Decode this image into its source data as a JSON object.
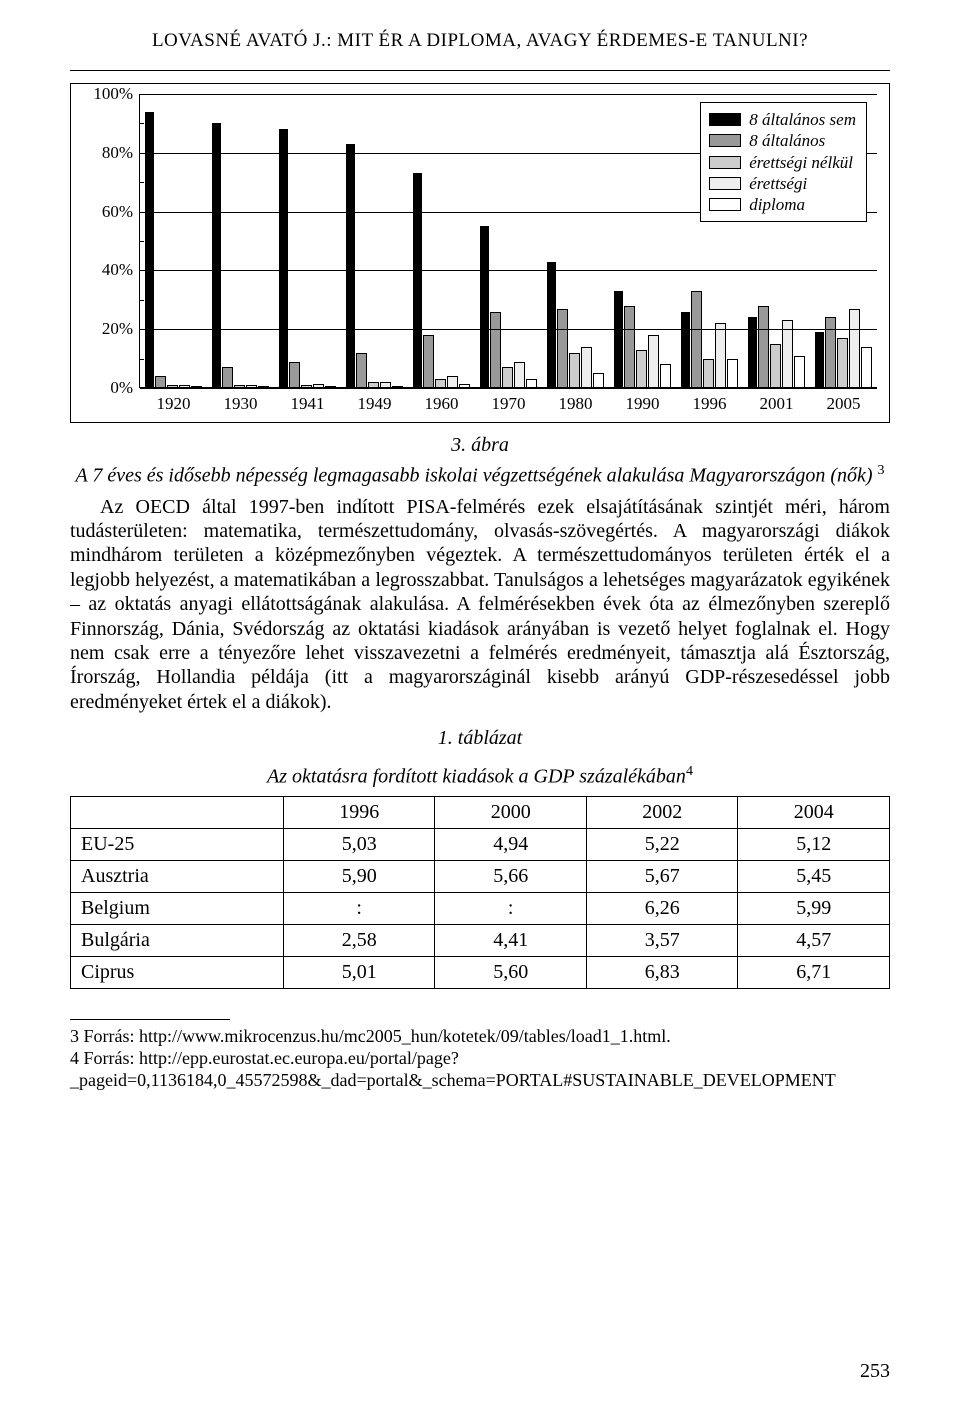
{
  "header_title": "LOVASNÉ AVATÓ J.: MIT ÉR A DIPLOMA, AVAGY ÉRDEMES-E TANULNI?",
  "chart": {
    "type": "bar",
    "y_ticks": [
      0,
      20,
      40,
      60,
      80,
      100
    ],
    "y_ticklabels": [
      "0%",
      "20%",
      "40%",
      "60%",
      "80%",
      "100%"
    ],
    "y_max": 100,
    "categories": [
      "1920",
      "1930",
      "1941",
      "1949",
      "1960",
      "1970",
      "1980",
      "1990",
      "1996",
      "2001",
      "2005"
    ],
    "series": [
      {
        "label": "8 általános sem",
        "values": [
          94,
          90,
          88,
          83,
          73,
          55,
          43,
          33,
          26,
          24,
          19
        ]
      },
      {
        "label": "8 általános",
        "values": [
          4,
          7,
          9,
          12,
          18,
          26,
          27,
          28,
          33,
          28,
          24
        ]
      },
      {
        "label": "érettségi nélkül",
        "values": [
          1,
          1,
          1,
          2,
          3,
          7,
          12,
          13,
          10,
          15,
          17
        ]
      },
      {
        "label": "érettségi",
        "values": [
          1,
          1,
          1.5,
          2,
          4,
          9,
          14,
          18,
          22,
          23,
          27
        ]
      },
      {
        "label": "diploma",
        "values": [
          0.5,
          0.5,
          0.6,
          0.8,
          1.5,
          3,
          5,
          8,
          10,
          11,
          14
        ]
      }
    ]
  },
  "caption_no": "3. ábra",
  "caption_text": "A 7 éves és idősebb népesség legmagasabb iskolai végzettségének alakulása Magyarországon (nők)",
  "caption_sup": "3",
  "body1_html": "Az OECD által 1997-ben indított PISA-felmérés ezek elsajátításának szintjét méri, három tudásterületen: matematika, természettudomány, olvasás-szövegértés. A magyarországi diákok mindhárom területen a középmezőnyben végeztek. A természettudományos területen érték el a legjobb helyezést, a matematikában a legrosszabbat. Tanulságos a lehetséges magyarázatok egyikének – az oktatás anyagi ellátottságának alakulása. A felmérésekben évek óta az élmezőnyben szereplő Finnország, Dánia, Svédország az oktatási kiadások arányában is vezető helyet foglalnak el. Hogy nem csak erre a tényezőre lehet visszavezetni a felmérés eredményeit, támasztja alá Észtország, Írország, Hollandia példája (itt a magyarországinál kisebb arányú GDP-részesedéssel jobb eredményeket értek el a diákok).",
  "table_caption_no": "1. táblázat",
  "table_caption_text": "Az oktatásra fordított kiadások a GDP százalékában",
  "table_caption_sup": "4",
  "table": {
    "columns": [
      "1996",
      "2000",
      "2002",
      "2004"
    ],
    "rows": [
      {
        "label": "EU-25",
        "cells": [
          "5,03",
          "4,94",
          "5,22",
          "5,12"
        ]
      },
      {
        "label": "Ausztria",
        "cells": [
          "5,90",
          "5,66",
          "5,67",
          "5,45"
        ]
      },
      {
        "label": "Belgium",
        "cells": [
          ":",
          ":",
          "6,26",
          "5,99"
        ]
      },
      {
        "label": "Bulgária",
        "cells": [
          "2,58",
          "4,41",
          "3,57",
          "4,57"
        ]
      },
      {
        "label": "Ciprus",
        "cells": [
          "5,01",
          "5,60",
          "6,83",
          "6,71"
        ]
      }
    ]
  },
  "footnotes": [
    "3 Forrás: http://www.mikrocenzus.hu/mc2005_hun/kotetek/09/tables/load1_1.html.",
    "4 Forrás: http://epp.eurostat.ec.europa.eu/portal/page?_pageid=0,1136184,0_45572598&_dad=portal&_schema=PORTAL#SUSTAINABLE_DEVELOPMENT"
  ],
  "page_number": "253"
}
